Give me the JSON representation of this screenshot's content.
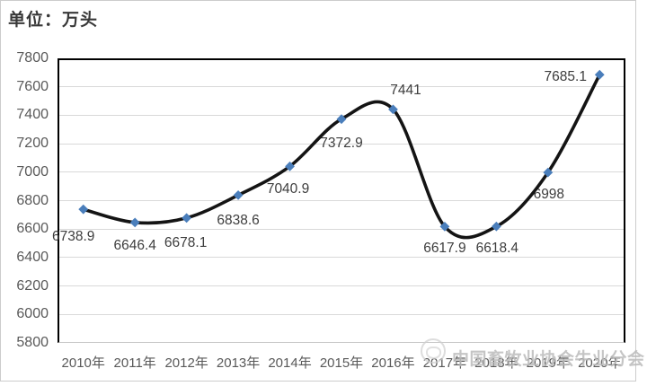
{
  "title": {
    "text": "单位：万头"
  },
  "watermark": {
    "text": "中国畜牧业协会牛业分会",
    "logo": "cattle-association-logo"
  },
  "colors": {
    "line": "#141414",
    "marker": "#4a7ebb",
    "grid": "#d9d9d9",
    "axis_text": "#595959",
    "label_text": "#3d3d3d",
    "title_text": "#383838",
    "watermark": "#bcbcbc",
    "frame_border": "#cccccc"
  },
  "chart_data": {
    "type": "line",
    "title": "单位：万头",
    "x": [
      "2010年",
      "2011年",
      "2012年",
      "2013年",
      "2014年",
      "2015年",
      "2016年",
      "2017年",
      "2018年",
      "2019年",
      "2020年"
    ],
    "values": [
      6738.9,
      6646.4,
      6678.1,
      6838.6,
      7040.9,
      7372.9,
      7441,
      6617.9,
      6618.4,
      6998,
      7685.1
    ],
    "labels": [
      "6738.9",
      "6646.4",
      "6678.1",
      "6838.6",
      "7040.9",
      "7372.9",
      "7441",
      "6617.9",
      "6618.4",
      "6998",
      "7685.1"
    ],
    "yticks": [
      "7800",
      "7600",
      "7400",
      "7200",
      "7000",
      "6800",
      "6600",
      "6400",
      "6200",
      "6000",
      "5800"
    ],
    "ylim": [
      5800,
      7800
    ],
    "ytick_step": 200,
    "xlabel": "",
    "ylabel": "",
    "grid": true,
    "legend": "none",
    "smooth": true,
    "marker": "diamond"
  }
}
